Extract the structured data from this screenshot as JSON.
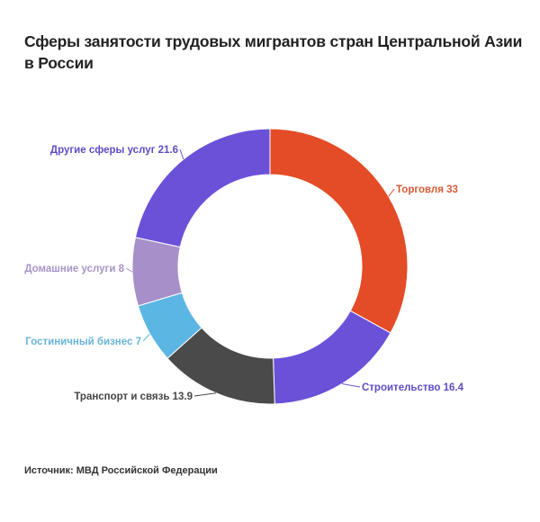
{
  "chart_data": {
    "type": "pie",
    "donut": true,
    "title": "Сферы занятости трудовых мигрантов стран Центральной Азии в России",
    "source": "Источник: МВД Российской Федерации",
    "slices": [
      {
        "label": "Торговля 33",
        "name": "Торговля",
        "value": 33,
        "color": "#e34c26",
        "text_color": "#d65a36"
      },
      {
        "label": "Строительство 16.4",
        "name": "Строительство",
        "value": 16.4,
        "color": "#6b51d8",
        "text_color": "#5e4cc4"
      },
      {
        "label": "Транспорт и связь 13.9",
        "name": "Транспорт и связь",
        "value": 13.9,
        "color": "#4a4a4a",
        "text_color": "#444444"
      },
      {
        "label": "Гостиничный бизнес 7",
        "name": "Гостиничный бизнес",
        "value": 7,
        "color": "#5cb6e4",
        "text_color": "#6ab4d8"
      },
      {
        "label": "Домашние услуги 8",
        "name": "Домашние услуги",
        "value": 8,
        "color": "#a78fc9",
        "text_color": "#a894c6"
      },
      {
        "label": "Другие сферы услуг 21.6",
        "name": "Другие сферы услуг",
        "value": 21.6,
        "color": "#6b51d8",
        "text_color": "#5e4cc4"
      }
    ]
  }
}
